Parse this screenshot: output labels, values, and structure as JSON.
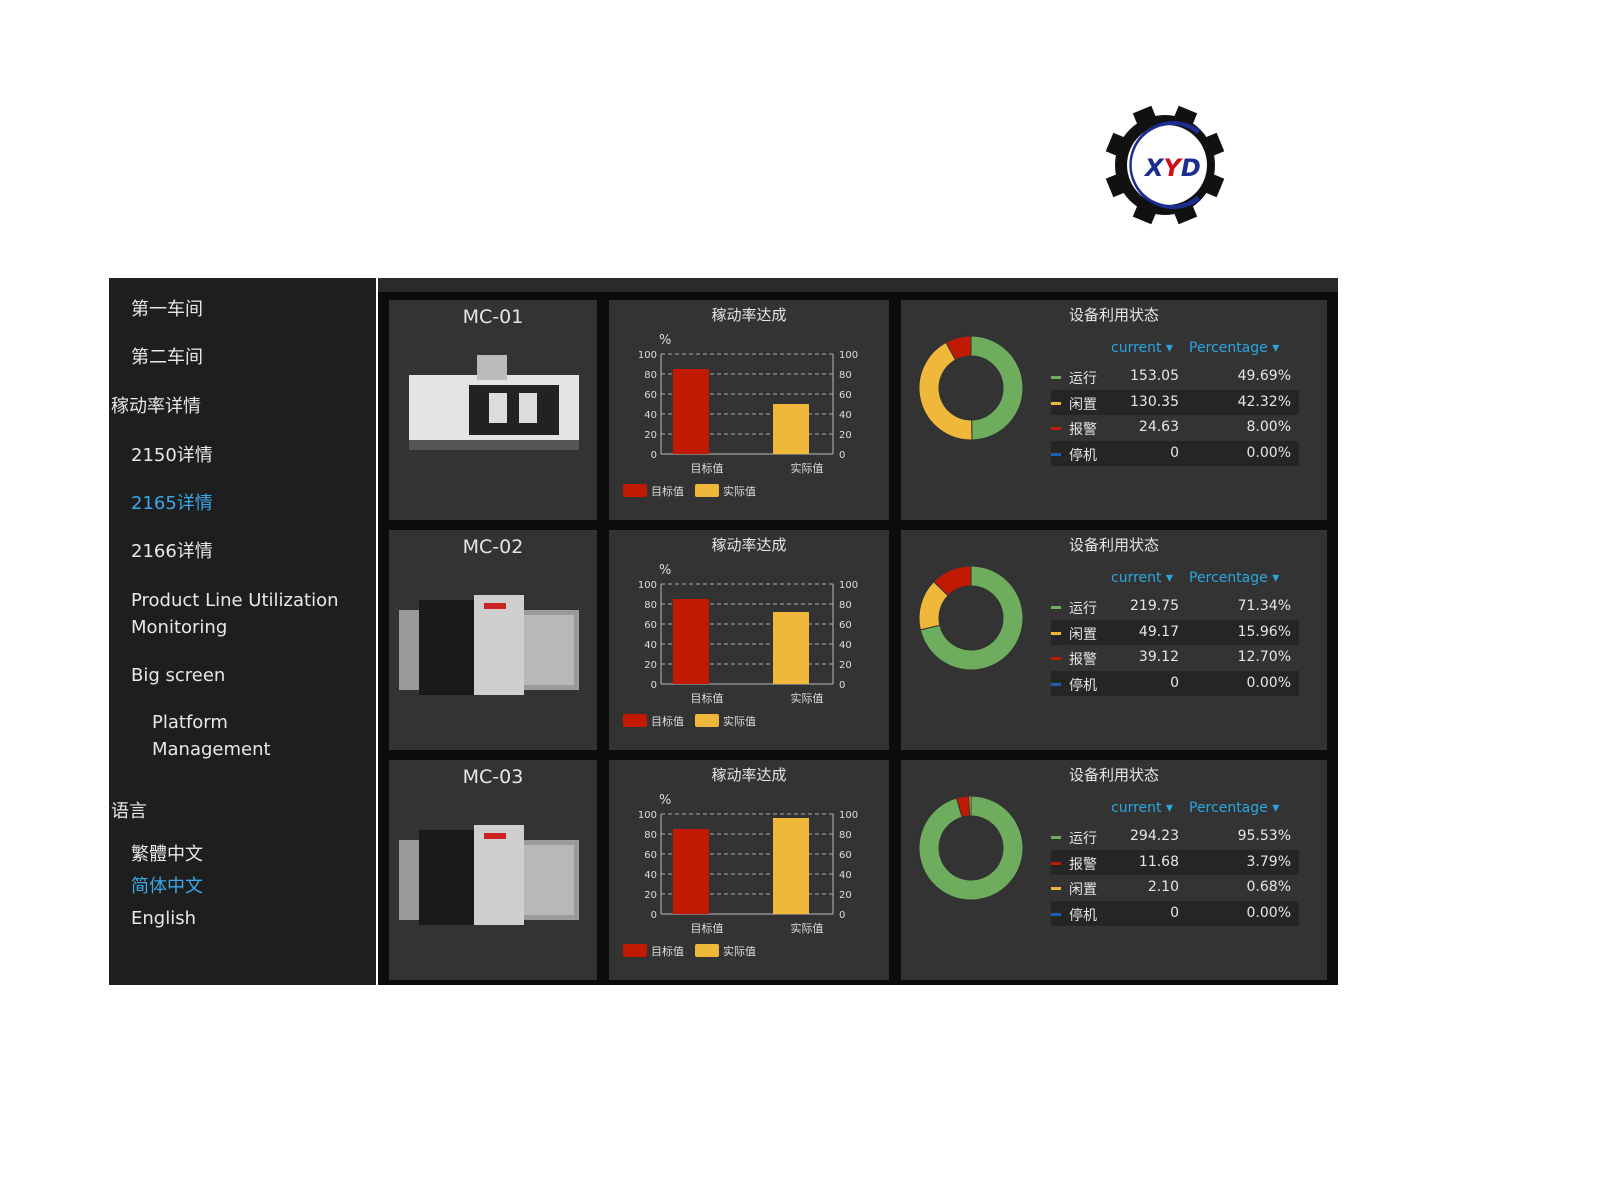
{
  "logo": {
    "text": "XYD"
  },
  "sidebar": {
    "items": [
      {
        "label": "第一车间",
        "active": false
      },
      {
        "label": "第二车间",
        "active": false
      },
      {
        "label": "稼动率详情",
        "active": false
      },
      {
        "label": "2150详情",
        "active": false
      },
      {
        "label": "2165详情",
        "active": true
      },
      {
        "label": "2166详情",
        "active": false
      },
      {
        "label": "Product Line Utilization Monitoring",
        "active": false
      },
      {
        "label": "Big screen",
        "active": false
      },
      {
        "label": "Platform Management",
        "active": false
      },
      {
        "label": "语言",
        "active": false
      },
      {
        "label": "繁體中文",
        "active": false
      },
      {
        "label": "简体中文",
        "active": true
      },
      {
        "label": "English",
        "active": false
      }
    ]
  },
  "colors": {
    "target": "#c01a05",
    "actual": "#f0b83a",
    "run": "#6fad5e",
    "idle": "#f0b83a",
    "alarm": "#c01a05",
    "stop": "#1f5fb0",
    "accent": "#2aa6e0"
  },
  "table_headers": {
    "current": "current",
    "percentage": "Percentage"
  },
  "machines": [
    {
      "name": "MC-01",
      "chart_title": "稼动率达成",
      "status_title": "设备利用状态",
      "chart_data": {
        "type": "bar",
        "unit": "%",
        "categories": [
          "目标值",
          "实际值"
        ],
        "values": [
          85,
          50
        ],
        "legend": [
          "目标值",
          "实际值"
        ],
        "ylim": [
          0,
          100
        ],
        "yticks": [
          0,
          20,
          40,
          60,
          80,
          100
        ]
      },
      "status": [
        {
          "label": "运行",
          "current": "153.05",
          "percentage": "49.69%",
          "value": 49.69,
          "color": "#6fad5e"
        },
        {
          "label": "闲置",
          "current": "130.35",
          "percentage": "42.32%",
          "value": 42.32,
          "color": "#f0b83a"
        },
        {
          "label": "报警",
          "current": "24.63",
          "percentage": "8.00%",
          "value": 8.0,
          "color": "#c01a05"
        },
        {
          "label": "停机",
          "current": "0",
          "percentage": "0.00%",
          "value": 0,
          "color": "#1f5fb0"
        }
      ]
    },
    {
      "name": "MC-02",
      "chart_title": "稼动率达成",
      "status_title": "设备利用状态",
      "chart_data": {
        "type": "bar",
        "unit": "%",
        "categories": [
          "目标值",
          "实际值"
        ],
        "values": [
          85,
          72
        ],
        "legend": [
          "目标值",
          "实际值"
        ],
        "ylim": [
          0,
          100
        ],
        "yticks": [
          0,
          20,
          40,
          60,
          80,
          100
        ]
      },
      "status": [
        {
          "label": "运行",
          "current": "219.75",
          "percentage": "71.34%",
          "value": 71.34,
          "color": "#6fad5e"
        },
        {
          "label": "闲置",
          "current": "49.17",
          "percentage": "15.96%",
          "value": 15.96,
          "color": "#f0b83a"
        },
        {
          "label": "报警",
          "current": "39.12",
          "percentage": "12.70%",
          "value": 12.7,
          "color": "#c01a05"
        },
        {
          "label": "停机",
          "current": "0",
          "percentage": "0.00%",
          "value": 0,
          "color": "#1f5fb0"
        }
      ]
    },
    {
      "name": "MC-03",
      "chart_title": "稼动率达成",
      "status_title": "设备利用状态",
      "chart_data": {
        "type": "bar",
        "unit": "%",
        "categories": [
          "目标值",
          "实际值"
        ],
        "values": [
          85,
          96
        ],
        "legend": [
          "目标值",
          "实际值"
        ],
        "ylim": [
          0,
          100
        ],
        "yticks": [
          0,
          20,
          40,
          60,
          80,
          100
        ]
      },
      "status": [
        {
          "label": "运行",
          "current": "294.23",
          "percentage": "95.53%",
          "value": 95.53,
          "color": "#6fad5e"
        },
        {
          "label": "报警",
          "current": "11.68",
          "percentage": "3.79%",
          "value": 3.79,
          "color": "#c01a05"
        },
        {
          "label": "闲置",
          "current": "2.10",
          "percentage": "0.68%",
          "value": 0.68,
          "color": "#f0b83a"
        },
        {
          "label": "停机",
          "current": "0",
          "percentage": "0.00%",
          "value": 0,
          "color": "#1f5fb0"
        }
      ]
    }
  ]
}
